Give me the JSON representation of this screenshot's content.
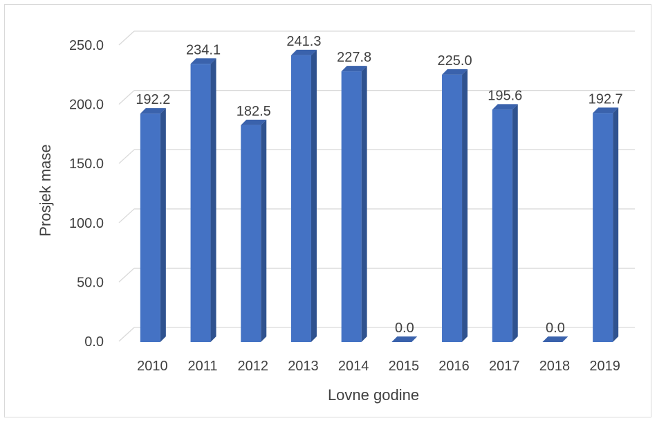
{
  "chart_data": {
    "type": "bar",
    "style": "3d-column",
    "categories": [
      "2010",
      "2011",
      "2012",
      "2013",
      "2014",
      "2015",
      "2016",
      "2017",
      "2018",
      "2019"
    ],
    "values": [
      192.2,
      234.1,
      182.5,
      241.3,
      227.8,
      0.0,
      225.0,
      195.6,
      0.0,
      192.7
    ],
    "data_labels": [
      "192.2",
      "234.1",
      "182.5",
      "241.3",
      "227.8",
      "0.0",
      "225.0",
      "195.6",
      "0.0",
      "192.7"
    ],
    "title": "",
    "xlabel": "Lovne godine",
    "ylabel": "Prosjek mase",
    "ylim": [
      0,
      250
    ],
    "yticks": [
      "0.0",
      "50.0",
      "100.0",
      "150.0",
      "200.0",
      "250.0"
    ],
    "grid": true,
    "legend": "none",
    "colors": {
      "bar_front": "#4472c4",
      "bar_side": "#2f528f",
      "bar_top": "#3a62ac",
      "grid": "#d9d9d9",
      "text": "#404040"
    }
  }
}
